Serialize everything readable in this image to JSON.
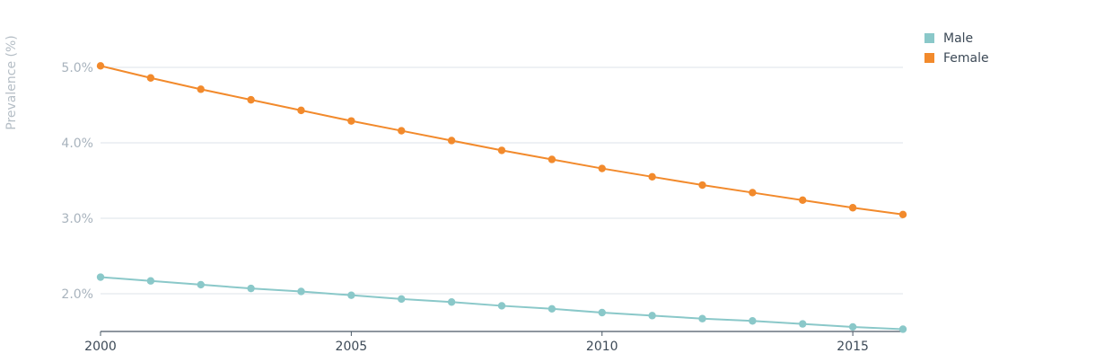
{
  "chart_data": {
    "type": "line",
    "title": "",
    "xlabel": "",
    "ylabel": "Prevalence (%)",
    "x": [
      2000,
      2001,
      2002,
      2003,
      2004,
      2005,
      2006,
      2007,
      2008,
      2009,
      2010,
      2011,
      2012,
      2013,
      2014,
      2015,
      2016
    ],
    "xticks": [
      "2000",
      "2005",
      "2010",
      "2015"
    ],
    "yticks": [
      "2.0%",
      "3.0%",
      "4.0%",
      "5.0%"
    ],
    "ylim": [
      1.5,
      5.7
    ],
    "xlim": [
      2000,
      2016
    ],
    "grid": true,
    "legend_position": "top-right",
    "series": [
      {
        "name": "Male",
        "color": "#8ac8c9",
        "values": [
          2.22,
          2.17,
          2.12,
          2.07,
          2.03,
          1.98,
          1.93,
          1.89,
          1.84,
          1.8,
          1.75,
          1.71,
          1.67,
          1.64,
          1.6,
          1.56,
          1.53
        ]
      },
      {
        "name": "Female",
        "color": "#f28a2c",
        "values": [
          5.02,
          4.86,
          4.71,
          4.57,
          4.43,
          4.29,
          4.16,
          4.03,
          3.9,
          3.78,
          3.66,
          3.55,
          3.44,
          3.34,
          3.24,
          3.14,
          3.05
        ]
      }
    ]
  }
}
